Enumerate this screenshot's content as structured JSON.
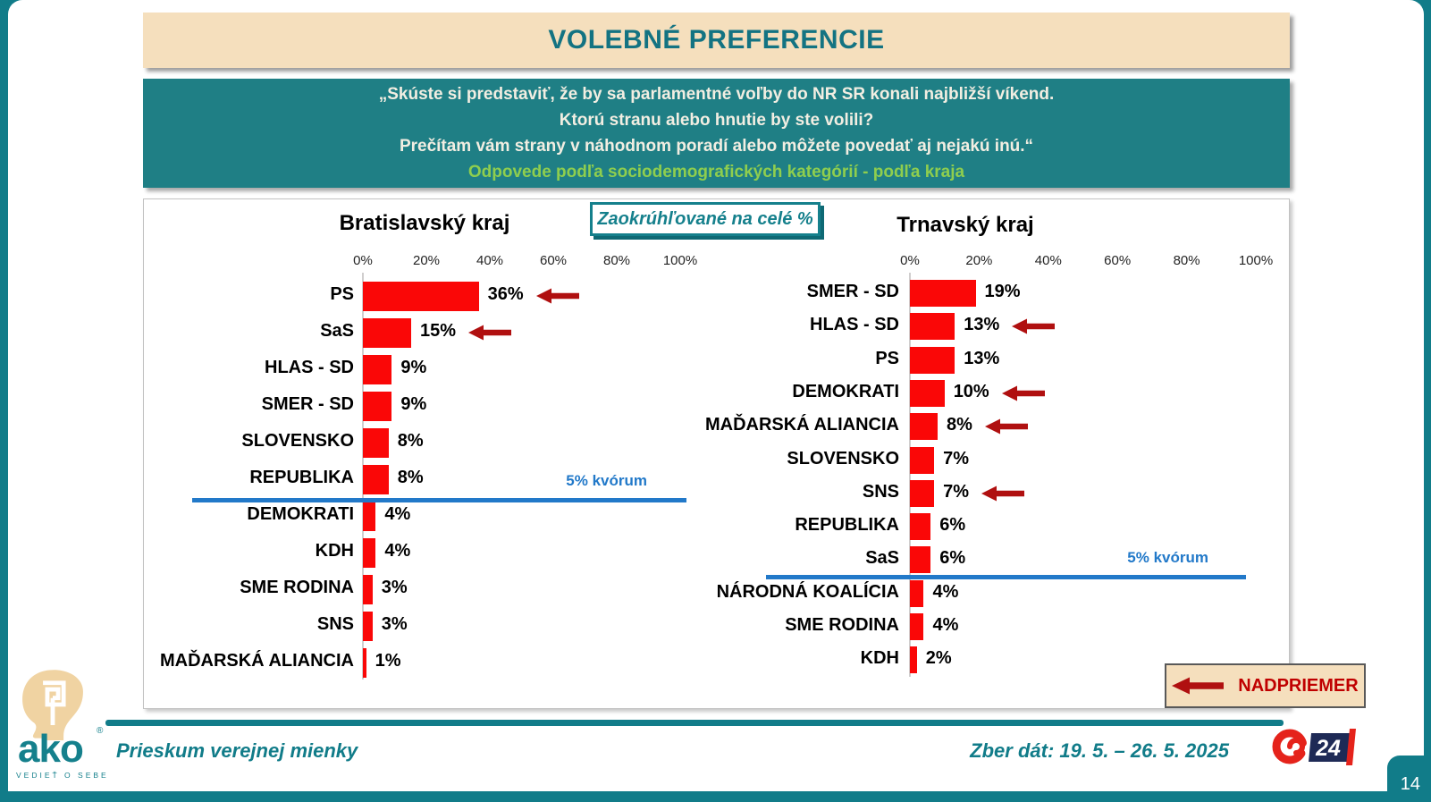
{
  "slide": {
    "title": "VOLEBNÉ PREFERENCIE",
    "question_lines": [
      "„Skúste si predstaviť, že by sa parlamentné voľby do NR SR konali najbližší víkend.",
      "Ktorú stranu alebo hnutie by ste volili?",
      "Prečítam vám strany v náhodnom poradí alebo môžete povedať aj nejakú inú.“"
    ],
    "question_subtitle": "Odpovede podľa sociodemografických kategórií - podľa kraja",
    "rounding_note": "Zaokrúhľované na celé %",
    "legend": {
      "label": "NADPRIEMER",
      "icon": "left-arrow-icon",
      "meaning": "above average"
    },
    "page_number": "14"
  },
  "footer": {
    "left_text": "Prieskum verejnej mienky",
    "right_text": "Zber dát: 19. 5. – 26. 5. 2025",
    "ako_logo_text": "ako",
    "ako_logo_subtext": "VEDIEŤ O SEBE",
    "joj24_text": "24"
  },
  "colors": {
    "teal": "#117C89",
    "teal_text": "#15808C",
    "cream": "#F5DFBD",
    "green_subtitle": "#8FCE4E",
    "question_text": "#F2EEE2",
    "bar_red": "#FA0707",
    "arrow_dark_red": "#B01010",
    "legend_red": "#C00000",
    "quorum_blue": "#2279C9",
    "joj_navy": "#1E2A56",
    "joj_red": "#E5231B",
    "ako_tan": "#F0D3A2"
  },
  "chart_data": [
    {
      "type": "bar",
      "orientation": "horizontal",
      "title": "Bratislavský kraj",
      "xlabel": "",
      "ylabel": "",
      "axis_tick_labels": [
        "0%",
        "20%",
        "40%",
        "60%",
        "80%",
        "100%"
      ],
      "xlim": [
        0,
        100
      ],
      "grid": false,
      "categories": [
        "PS",
        "SaS",
        "HLAS - SD",
        "SMER - SD",
        "SLOVENSKO",
        "REPUBLIKA",
        "DEMOKRATI",
        "KDH",
        "SME RODINA",
        "SNS",
        "MAĎARSKÁ ALIANCIA"
      ],
      "values": [
        36,
        15,
        9,
        9,
        8,
        8,
        4,
        4,
        3,
        3,
        1
      ],
      "value_labels": [
        "36%",
        "15%",
        "9%",
        "9%",
        "8%",
        "8%",
        "4%",
        "4%",
        "3%",
        "3%",
        "1%"
      ],
      "above_average_marked": [
        true,
        true,
        false,
        false,
        false,
        false,
        false,
        false,
        false,
        false,
        false
      ],
      "quorum_line": {
        "label": "5% kvórum",
        "value": 5,
        "below_category": "REPUBLIKA"
      }
    },
    {
      "type": "bar",
      "orientation": "horizontal",
      "title": "Trnavský kraj",
      "xlabel": "",
      "ylabel": "",
      "axis_tick_labels": [
        "0%",
        "20%",
        "40%",
        "60%",
        "80%",
        "100%"
      ],
      "xlim": [
        0,
        100
      ],
      "grid": false,
      "categories": [
        "SMER - SD",
        "HLAS - SD",
        "PS",
        "DEMOKRATI",
        "MAĎARSKÁ ALIANCIA",
        "SLOVENSKO",
        "SNS",
        "REPUBLIKA",
        "SaS",
        "NÁRODNÁ KOALÍCIA",
        "SME RODINA",
        "KDH"
      ],
      "values": [
        19,
        13,
        13,
        10,
        8,
        7,
        7,
        6,
        6,
        4,
        4,
        2
      ],
      "value_labels": [
        "19%",
        "13%",
        "13%",
        "10%",
        "8%",
        "7%",
        "7%",
        "6%",
        "6%",
        "4%",
        "4%",
        "2%"
      ],
      "above_average_marked": [
        false,
        true,
        false,
        true,
        true,
        false,
        true,
        false,
        false,
        false,
        false,
        false
      ],
      "quorum_line": {
        "label": "5% kvórum",
        "value": 5,
        "below_category": "SaS"
      }
    }
  ]
}
